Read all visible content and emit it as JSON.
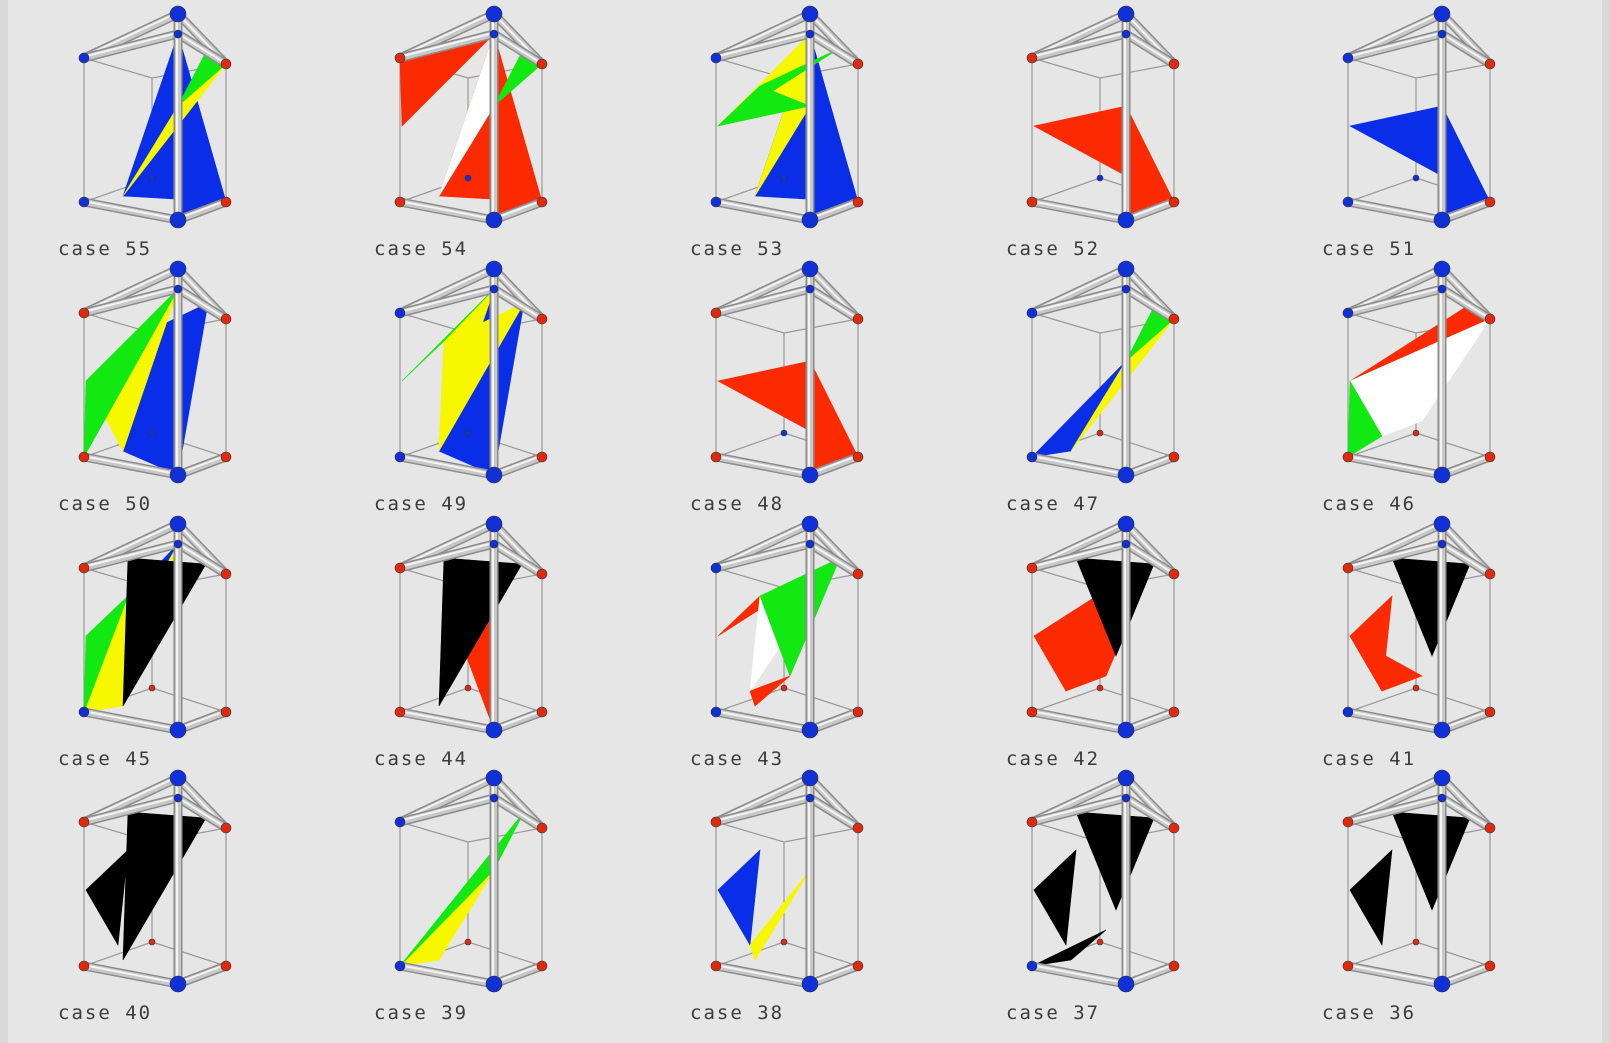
{
  "colors": {
    "blue": "#0a2ee8",
    "red": "#fb2a00",
    "green": "#12e812",
    "yellow": "#f7f700",
    "white": "#ffffff",
    "black": "#000000",
    "rod": "#c8c8c8",
    "vertex_blue": "#1030d8",
    "vertex_red": "#e02a10"
  },
  "cases": [
    {
      "label": "case 55",
      "node_colors": [
        "blue",
        "blue",
        "red",
        "blue",
        "blue",
        "blue",
        "red",
        "blue"
      ],
      "patches": [
        [
          "blue",
          [
            [
              6,
              7,
              3
            ],
            [
              6,
              3,
              9
            ]
          ]
        ],
        [
          "yellow",
          [
            [
              9,
              10,
              2
            ]
          ]
        ],
        [
          "green",
          [
            [
              10,
              11,
              2
            ]
          ]
        ]
      ]
    },
    {
      "label": "case 54",
      "node_colors": [
        "red",
        "blue",
        "red",
        "blue",
        "red",
        "blue",
        "red",
        "blue"
      ],
      "patches": [
        [
          "red",
          [
            [
              12,
              0,
              3
            ],
            [
              6,
              7,
              3
            ],
            [
              6,
              3,
              9
            ]
          ]
        ],
        [
          "white",
          [
            [
              9,
              10,
              3
            ]
          ]
        ],
        [
          "green",
          [
            [
              10,
              11,
              2
            ]
          ]
        ]
      ]
    },
    {
      "label": "case 53",
      "node_colors": [
        "blue",
        "blue",
        "red",
        "blue",
        "blue",
        "blue",
        "red",
        "blue"
      ],
      "patches": [
        [
          "blue",
          [
            [
              7,
              6,
              3
            ],
            [
              3,
              6,
              9
            ]
          ]
        ],
        [
          "yellow",
          [
            [
              3,
              9,
              10
            ],
            [
              3,
              10,
              12
            ]
          ]
        ],
        [
          "green",
          [
            [
              12,
              10,
              13
            ],
            [
              12,
              13,
              11
            ]
          ]
        ]
      ]
    },
    {
      "label": "case 52",
      "node_colors": [
        "red",
        "blue",
        "red",
        "blue",
        "red",
        "blue",
        "red",
        "blue"
      ],
      "patches": [
        [
          "red",
          [
            [
              10,
              12,
              6
            ],
            [
              10,
              6,
              7
            ],
            [
              10,
              7,
              3
            ]
          ]
        ]
      ]
    },
    {
      "label": "case 51",
      "node_colors": [
        "blue",
        "blue",
        "red",
        "blue",
        "blue",
        "blue",
        "red",
        "blue"
      ],
      "patches": [
        [
          "blue",
          [
            [
              10,
              12,
              6
            ],
            [
              10,
              6,
              7
            ],
            [
              10,
              7,
              3
            ]
          ]
        ]
      ]
    },
    {
      "label": "case 50",
      "node_colors": [
        "red",
        "blue",
        "red",
        "blue",
        "red",
        "blue",
        "red",
        "blue"
      ],
      "patches": [
        [
          "blue",
          [
            [
              13,
              11,
              9
            ],
            [
              9,
              11,
              7
            ]
          ]
        ],
        [
          "yellow",
          [
            [
              13,
              9,
              12
            ],
            [
              9,
              3,
              12
            ]
          ]
        ],
        [
          "green",
          [
            [
              12,
              3,
              4
            ]
          ]
        ]
      ]
    },
    {
      "label": "case 49",
      "node_colors": [
        "blue",
        "blue",
        "red",
        "blue",
        "blue",
        "blue",
        "red",
        "blue"
      ],
      "patches": [
        [
          "blue",
          [
            [
              9,
              11,
              7
            ],
            [
              9,
              7,
              3
            ]
          ]
        ],
        [
          "yellow",
          [
            [
              13,
              11,
              9
            ],
            [
              13,
              9,
              3
            ]
          ]
        ],
        [
          "green",
          [
            [
              12,
              13,
              3
            ]
          ]
        ]
      ]
    },
    {
      "label": "case 48",
      "node_colors": [
        "red",
        "blue",
        "red",
        "blue",
        "red",
        "blue",
        "red",
        "blue"
      ],
      "patches": [
        [
          "red",
          [
            [
              10,
              12,
              6
            ],
            [
              10,
              6,
              7
            ],
            [
              10,
              7,
              3
            ]
          ]
        ]
      ]
    },
    {
      "label": "case 47",
      "node_colors": [
        "blue",
        "blue",
        "red",
        "blue",
        "blue",
        "red",
        "red",
        "blue"
      ],
      "patches": [
        [
          "blue",
          [
            [
              4,
              9,
              10
            ]
          ]
        ],
        [
          "yellow",
          [
            [
              9,
              10,
              2
            ]
          ]
        ],
        [
          "green",
          [
            [
              10,
              11,
              2
            ]
          ]
        ]
      ]
    },
    {
      "label": "case 46",
      "node_colors": [
        "blue",
        "blue",
        "red",
        "blue",
        "red",
        "red",
        "red",
        "blue"
      ],
      "patches": [
        [
          "red",
          [
            [
              12,
              11,
              2
            ]
          ]
        ],
        [
          "white",
          [
            [
              12,
              2,
              14
            ],
            [
              14,
              2,
              15
            ]
          ]
        ],
        [
          "green",
          [
            [
              12,
              14,
              4
            ]
          ]
        ]
      ]
    },
    {
      "label": "case 45",
      "node_colors": [
        "red",
        "blue",
        "red",
        "blue",
        "blue",
        "red",
        "red",
        "blue"
      ],
      "patches": [
        [
          "blue",
          [
            [
              13,
              9,
              3
            ],
            [
              13,
              3,
              4
            ]
          ]
        ],
        [
          "yellow",
          [
            [
              13,
              9,
              4
            ],
            [
              9,
              3,
              4
            ]
          ]
        ],
        [
          "green",
          [
            [
              12,
              13,
              4
            ]
          ]
        ],
        [
          "black",
          [
            [
              16,
              17,
              9
            ]
          ]
        ]
      ]
    },
    {
      "label": "case 44",
      "node_colors": [
        "red",
        "blue",
        "red",
        "blue",
        "red",
        "red",
        "red",
        "blue"
      ],
      "patches": [
        [
          "red",
          [
            [
              10,
              13,
              7
            ],
            [
              10,
              7,
              3
            ]
          ]
        ],
        [
          "black",
          [
            [
              16,
              17,
              9
            ]
          ]
        ]
      ]
    },
    {
      "label": "case 43",
      "node_colors": [
        "blue",
        "blue",
        "red",
        "blue",
        "blue",
        "red",
        "red",
        "blue"
      ],
      "patches": [
        [
          "red",
          [
            [
              12,
              11,
              13
            ],
            [
              14,
              9,
              15
            ]
          ]
        ],
        [
          "white",
          [
            [
              13,
              11,
              14
            ]
          ]
        ],
        [
          "green",
          [
            [
              13,
              11,
              15
            ]
          ]
        ]
      ]
    },
    {
      "label": "case 42",
      "node_colors": [
        "red",
        "blue",
        "red",
        "blue",
        "red",
        "red",
        "red",
        "blue"
      ],
      "patches": [
        [
          "red",
          [
            [
              12,
              11,
              14
            ],
            [
              14,
              11,
              15
            ]
          ]
        ],
        [
          "black",
          [
            [
              16,
              17,
              18
            ]
          ]
        ]
      ]
    },
    {
      "label": "case 41",
      "node_colors": [
        "red",
        "blue",
        "red",
        "blue",
        "blue",
        "red",
        "red",
        "blue"
      ],
      "patches": [
        [
          "red",
          [
            [
              12,
              13,
              14
            ],
            [
              12,
              14,
              15
            ]
          ]
        ],
        [
          "black",
          [
            [
              16,
              17,
              18
            ]
          ]
        ]
      ]
    },
    {
      "label": "case 40",
      "node_colors": [
        "red",
        "blue",
        "red",
        "blue",
        "red",
        "red",
        "red",
        "blue"
      ],
      "patches": [
        [
          "black",
          [
            [
              16,
              17,
              9
            ],
            [
              12,
              13,
              14
            ]
          ]
        ]
      ]
    },
    {
      "label": "case 39",
      "node_colors": [
        "blue",
        "blue",
        "red",
        "blue",
        "blue",
        "red",
        "red",
        "blue"
      ],
      "patches": [
        [
          "yellow",
          [
            [
              4,
              9,
              10
            ]
          ]
        ],
        [
          "green",
          [
            [
              4,
              10,
              11
            ]
          ]
        ]
      ]
    },
    {
      "label": "case 38",
      "node_colors": [
        "red",
        "blue",
        "red",
        "blue",
        "red",
        "red",
        "red",
        "blue"
      ],
      "patches": [
        [
          "blue",
          [
            [
              12,
              13,
              14
            ]
          ]
        ],
        [
          "yellow",
          [
            [
              14,
              9,
              10
            ]
          ]
        ]
      ]
    },
    {
      "label": "case 37",
      "node_colors": [
        "red",
        "blue",
        "red",
        "blue",
        "blue",
        "red",
        "red",
        "blue"
      ],
      "patches": [
        [
          "black",
          [
            [
              16,
              17,
              18
            ],
            [
              12,
              13,
              14
            ],
            [
              15,
              4,
              9
            ]
          ]
        ]
      ]
    },
    {
      "label": "case 36",
      "node_colors": [
        "red",
        "blue",
        "red",
        "blue",
        "red",
        "red",
        "red",
        "blue"
      ],
      "patches": [
        [
          "black",
          [
            [
              16,
              17,
              18
            ],
            [
              12,
              13,
              14
            ]
          ]
        ]
      ]
    }
  ]
}
